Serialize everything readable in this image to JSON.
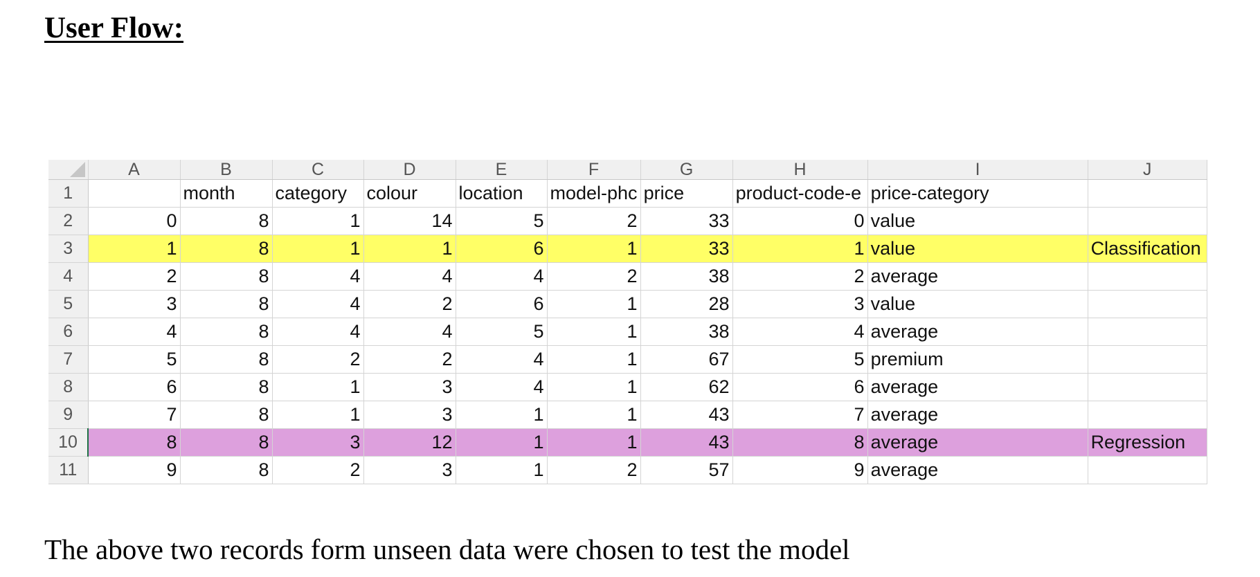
{
  "heading": "User Flow:",
  "caption": "The above two records form unseen data were chosen to test the model",
  "sheet": {
    "column_letters": [
      "A",
      "B",
      "C",
      "D",
      "E",
      "F",
      "G",
      "H",
      "I",
      "J"
    ],
    "headers": {
      "row_number": "1",
      "A": "",
      "B": "month",
      "C": "category",
      "D": "colour",
      "E": "location",
      "F": "model-phc",
      "G": "price",
      "H": "product-code-e",
      "I": "price-category",
      "J": ""
    },
    "rows": [
      {
        "row_number": "2",
        "A": "0",
        "B": "8",
        "C": "1",
        "D": "14",
        "E": "5",
        "F": "2",
        "G": "33",
        "H": "0",
        "I": "value",
        "J": "",
        "highlight": "none"
      },
      {
        "row_number": "3",
        "A": "1",
        "B": "8",
        "C": "1",
        "D": "1",
        "E": "6",
        "F": "1",
        "G": "33",
        "H": "1",
        "I": "value",
        "J": "Classification",
        "highlight": "yellow"
      },
      {
        "row_number": "4",
        "A": "2",
        "B": "8",
        "C": "4",
        "D": "4",
        "E": "4",
        "F": "2",
        "G": "38",
        "H": "2",
        "I": "average",
        "J": "",
        "highlight": "none"
      },
      {
        "row_number": "5",
        "A": "3",
        "B": "8",
        "C": "4",
        "D": "2",
        "E": "6",
        "F": "1",
        "G": "28",
        "H": "3",
        "I": "value",
        "J": "",
        "highlight": "none"
      },
      {
        "row_number": "6",
        "A": "4",
        "B": "8",
        "C": "4",
        "D": "4",
        "E": "5",
        "F": "1",
        "G": "38",
        "H": "4",
        "I": "average",
        "J": "",
        "highlight": "none"
      },
      {
        "row_number": "7",
        "A": "5",
        "B": "8",
        "C": "2",
        "D": "2",
        "E": "4",
        "F": "1",
        "G": "67",
        "H": "5",
        "I": "premium",
        "J": "",
        "highlight": "none"
      },
      {
        "row_number": "8",
        "A": "6",
        "B": "8",
        "C": "1",
        "D": "3",
        "E": "4",
        "F": "1",
        "G": "62",
        "H": "6",
        "I": "average",
        "J": "",
        "highlight": "none"
      },
      {
        "row_number": "9",
        "A": "7",
        "B": "8",
        "C": "1",
        "D": "3",
        "E": "1",
        "F": "1",
        "G": "43",
        "H": "7",
        "I": "average",
        "J": "",
        "highlight": "none"
      },
      {
        "row_number": "10",
        "A": "8",
        "B": "8",
        "C": "3",
        "D": "12",
        "E": "1",
        "F": "1",
        "G": "43",
        "H": "8",
        "I": "average",
        "J": "Regression",
        "highlight": "pink"
      },
      {
        "row_number": "11",
        "A": "9",
        "B": "8",
        "C": "2",
        "D": "3",
        "E": "1",
        "F": "2",
        "G": "57",
        "H": "9",
        "I": "average",
        "J": "",
        "highlight": "none"
      }
    ],
    "colors": {
      "yellow_highlight": "#ffff66",
      "pink_highlight": "#dda0dd",
      "selected_row_marker": "#1e7145"
    }
  }
}
